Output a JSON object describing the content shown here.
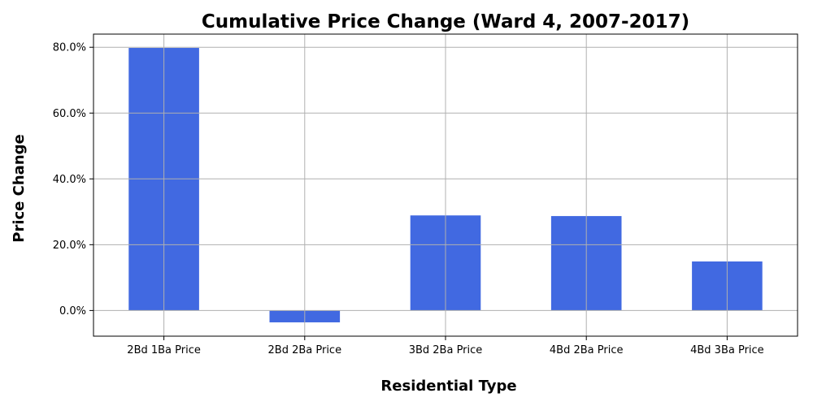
{
  "chart_data": {
    "type": "bar",
    "title": "Cumulative Price Change (Ward 4, 2007-2017)",
    "xlabel": "Residential Type",
    "ylabel": "Price Change",
    "categories": [
      "2Bd 1Ba Price",
      "2Bd 2Ba Price",
      "3Bd 2Ba Price",
      "4Bd 2Ba Price",
      "4Bd 3Ba Price"
    ],
    "values": [
      79.8,
      -3.6,
      28.9,
      28.7,
      14.9
    ],
    "value_unit": "%",
    "ylim": [
      -7.8,
      84.0
    ],
    "yticks": [
      0,
      20,
      40,
      60,
      80
    ],
    "ytick_labels": [
      "0.0%",
      "20.0%",
      "40.0%",
      "60.0%",
      "80.0%"
    ],
    "grid": true,
    "bar_color": "#4169e1"
  }
}
